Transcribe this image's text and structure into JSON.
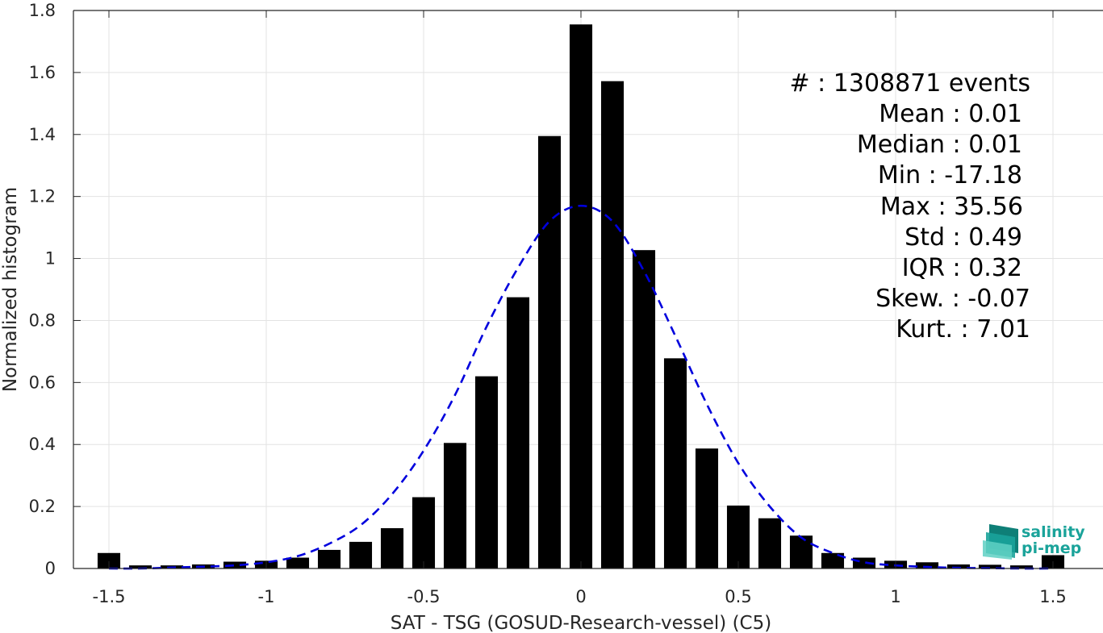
{
  "chart_data": {
    "type": "bar",
    "xlabel": "SAT - TSG (GOSUD-Research-vessel) (C5)",
    "ylabel": "Normalized histogram",
    "xlim": [
      -1.6,
      1.6
    ],
    "ylim": [
      0,
      1.8
    ],
    "grid": true,
    "x_ticks": [
      -1.5,
      -1,
      -0.5,
      0,
      0.5,
      1,
      1.5
    ],
    "x_tick_labels": [
      "-1.5",
      "-1",
      "-0.5",
      "0",
      "0.5",
      "1",
      "1.5"
    ],
    "y_ticks": [
      0,
      0.2,
      0.4,
      0.6,
      0.8,
      1,
      1.2,
      1.4,
      1.6,
      1.8
    ],
    "y_tick_labels": [
      "0",
      "0.2",
      "0.4",
      "0.6",
      "0.8",
      "1",
      "1.2",
      "1.4",
      "1.6",
      "1.8"
    ],
    "bin_width": 0.1,
    "bar_color": "#000000",
    "bars": {
      "x": [
        -1.5,
        -1.4,
        -1.3,
        -1.2,
        -1.1,
        -1.0,
        -0.9,
        -0.8,
        -0.7,
        -0.6,
        -0.5,
        -0.4,
        -0.3,
        -0.2,
        -0.1,
        0.0,
        0.1,
        0.2,
        0.3,
        0.4,
        0.5,
        0.6,
        0.7,
        0.8,
        0.9,
        1.0,
        1.1,
        1.2,
        1.3,
        1.4,
        1.5
      ],
      "values": [
        0.05,
        0.01,
        0.01,
        0.013,
        0.022,
        0.025,
        0.035,
        0.06,
        0.086,
        0.13,
        0.23,
        0.405,
        0.62,
        0.875,
        1.395,
        1.755,
        1.572,
        1.027,
        0.678,
        0.387,
        0.203,
        0.162,
        0.106,
        0.05,
        0.035,
        0.025,
        0.02,
        0.013,
        0.012,
        0.01,
        0.043
      ]
    },
    "fit_curve": {
      "style": "dashed",
      "color": "#0000dd",
      "x": [
        -1.5,
        -1.4,
        -1.3,
        -1.2,
        -1.1,
        -1.0,
        -0.9,
        -0.8,
        -0.7,
        -0.6,
        -0.5,
        -0.4,
        -0.3,
        -0.2,
        -0.1,
        0.0,
        0.1,
        0.2,
        0.3,
        0.4,
        0.5,
        0.6,
        0.7,
        0.8,
        0.9,
        1.0,
        1.1,
        1.2,
        1.3,
        1.4,
        1.5
      ],
      "values": [
        0.0,
        0.0,
        0.003,
        0.006,
        0.01,
        0.02,
        0.04,
        0.08,
        0.14,
        0.24,
        0.38,
        0.56,
        0.78,
        0.97,
        1.12,
        1.17,
        1.12,
        0.96,
        0.75,
        0.53,
        0.34,
        0.2,
        0.1,
        0.05,
        0.02,
        0.01,
        0.005,
        0.002,
        0.001,
        0.0,
        0.0
      ]
    },
    "annotations": [
      "#  : 1308871 events",
      "Mean : 0.01",
      "Median : 0.01",
      "Min : -17.18",
      "Max : 35.56",
      "Std : 0.49",
      "IQR : 0.32",
      "Skew. : -0.07",
      "Kurt. : 7.01"
    ]
  },
  "logo": {
    "line1": "salinity",
    "line2": "pi-mep",
    "color": "#1aa39a"
  }
}
